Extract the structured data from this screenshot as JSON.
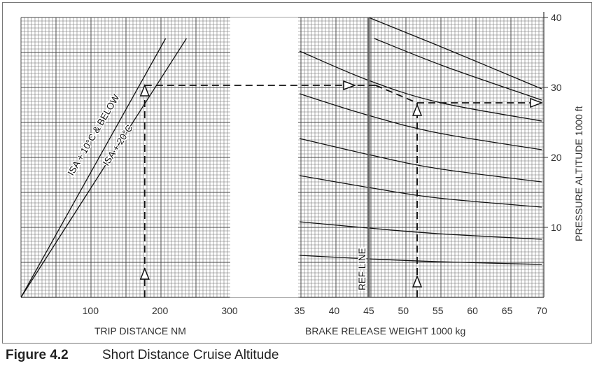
{
  "caption": {
    "number": "Figure 4.2",
    "title": "Short Distance Cruise Altitude"
  },
  "chart_data": {
    "type": "line",
    "panels": [
      {
        "id": "trip-distance",
        "xlabel": "TRIP DISTANCE  NM",
        "xlim": [
          0,
          300
        ],
        "x_ticks": [
          100,
          200,
          300
        ],
        "series": [
          {
            "name": "ISA + 10°C & BELOW",
            "x": [
              0,
              208
            ],
            "y": [
              0,
              37
            ]
          },
          {
            "name": "ISA + 20°C",
            "x": [
              0,
              238
            ],
            "y": [
              0,
              37
            ]
          }
        ]
      },
      {
        "id": "brake-release-weight",
        "xlabel": "BRAKE RELEASE WEIGHT   1000 kg",
        "xlim": [
          35,
          70
        ],
        "x_ticks": [
          35,
          40,
          45,
          50,
          55,
          60,
          65,
          70
        ],
        "ref_line": {
          "x": 45,
          "label": "REF LINE"
        },
        "series": [
          {
            "x": [
              35,
              45,
              55,
              70
            ],
            "y": [
              35.2,
              31.0,
              27.9,
              25.2
            ]
          },
          {
            "x": [
              35,
              45,
              55,
              70
            ],
            "y": [
              29.1,
              26.0,
              23.5,
              21.1
            ]
          },
          {
            "x": [
              35,
              45,
              55,
              70
            ],
            "y": [
              22.7,
              20.4,
              18.4,
              16.5
            ]
          },
          {
            "x": [
              35,
              45,
              55,
              70
            ],
            "y": [
              17.4,
              15.7,
              14.2,
              12.9
            ]
          },
          {
            "x": [
              35,
              45,
              55,
              70
            ],
            "y": [
              10.8,
              9.9,
              9.1,
              8.3
            ]
          },
          {
            "x": [
              35,
              45,
              55,
              70
            ],
            "y": [
              6.0,
              5.5,
              5.1,
              4.7
            ]
          }
        ],
        "extra_curves": [
          {
            "x": [
              45,
              55,
              70
            ],
            "y": [
              40.0,
              36.0,
              29.8
            ]
          },
          {
            "x": [
              45.8,
              56,
              70
            ],
            "y": [
              37.0,
              33.0,
              28.2
            ]
          }
        ]
      }
    ],
    "y_axis": {
      "label": "PRESSURE ALTITUDE   1000 ft",
      "ylim": [
        0,
        40
      ],
      "ticks": [
        10,
        20,
        30,
        40
      ]
    },
    "example": {
      "trip_distance": 178,
      "altitude_from_distance": 30.3,
      "weight": 52,
      "altitude_result": 27.8
    },
    "grid": true
  }
}
